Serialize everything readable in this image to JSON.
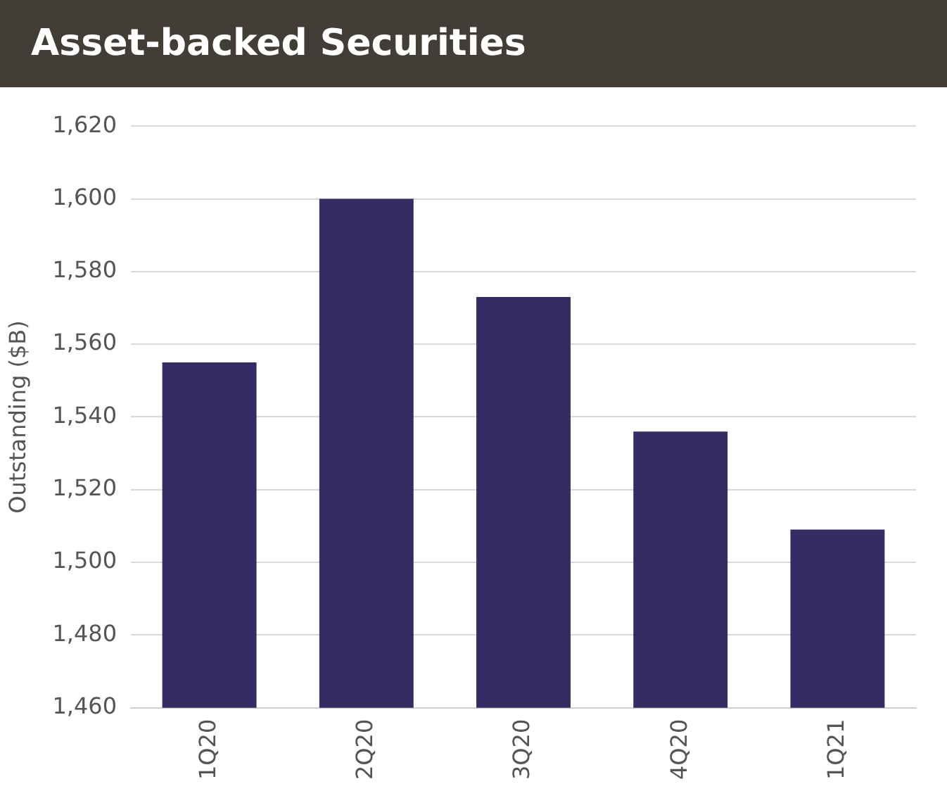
{
  "chart_data": {
    "type": "bar",
    "title": "Asset-backed Securities",
    "ylabel": "Outstanding ($B)",
    "categories": [
      "1Q20",
      "2Q20",
      "3Q20",
      "4Q20",
      "1Q21"
    ],
    "values": [
      1555,
      1600,
      1573,
      1536,
      1509
    ],
    "color": "#352c63",
    "ylim": [
      1460,
      1620
    ],
    "yticks": [
      {
        "value": 1460,
        "label": "1,460"
      },
      {
        "value": 1480,
        "label": "1,480"
      },
      {
        "value": 1500,
        "label": "1,500"
      },
      {
        "value": 1520,
        "label": "1,520"
      },
      {
        "value": 1540,
        "label": "1,540"
      },
      {
        "value": 1560,
        "label": "1,560"
      },
      {
        "value": 1580,
        "label": "1,580"
      },
      {
        "value": 1600,
        "label": "1,600"
      },
      {
        "value": 1620,
        "label": "1,620"
      }
    ],
    "grid": "y"
  }
}
